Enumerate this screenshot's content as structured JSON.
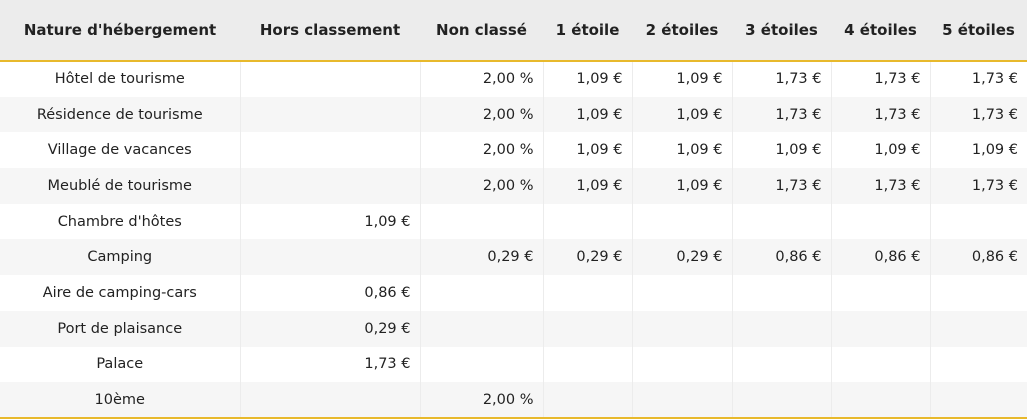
{
  "table": {
    "headers": [
      "Nature d'hébergement",
      "Hors classement",
      "Non classé",
      "1 étoile",
      "2 étoiles",
      "3 étoiles",
      "4 étoiles",
      "5 étoiles"
    ],
    "rows": [
      [
        "Hôtel de tourisme",
        null,
        "2,00 %",
        "1,09 €",
        "1,09 €",
        "1,73 €",
        "1,73 €",
        "1,73 €"
      ],
      [
        "Résidence de tourisme",
        null,
        "2,00 %",
        "1,09 €",
        "1,09 €",
        "1,73 €",
        "1,73 €",
        "1,73 €"
      ],
      [
        "Village de vacances",
        null,
        "2,00 %",
        "1,09 €",
        "1,09 €",
        "1,09 €",
        "1,09 €",
        "1,09 €"
      ],
      [
        "Meublé de tourisme",
        null,
        "2,00 %",
        "1,09 €",
        "1,09 €",
        "1,73 €",
        "1,73 €",
        "1,73 €"
      ],
      [
        "Chambre d'hôtes",
        "1,09 €",
        null,
        null,
        null,
        null,
        null,
        null
      ],
      [
        "Camping",
        null,
        "0,29 €",
        "0,29 €",
        "0,29 €",
        "0,86 €",
        "0,86 €",
        "0,86 €"
      ],
      [
        "Aire de camping-cars",
        "0,86 €",
        null,
        null,
        null,
        null,
        null,
        null
      ],
      [
        "Port de plaisance",
        "0,29 €",
        null,
        null,
        null,
        null,
        null,
        null
      ],
      [
        "Palace",
        "1,73 €",
        null,
        null,
        null,
        null,
        null,
        null
      ],
      [
        "10ème",
        null,
        "2,00 %",
        null,
        null,
        null,
        null,
        null
      ]
    ]
  }
}
